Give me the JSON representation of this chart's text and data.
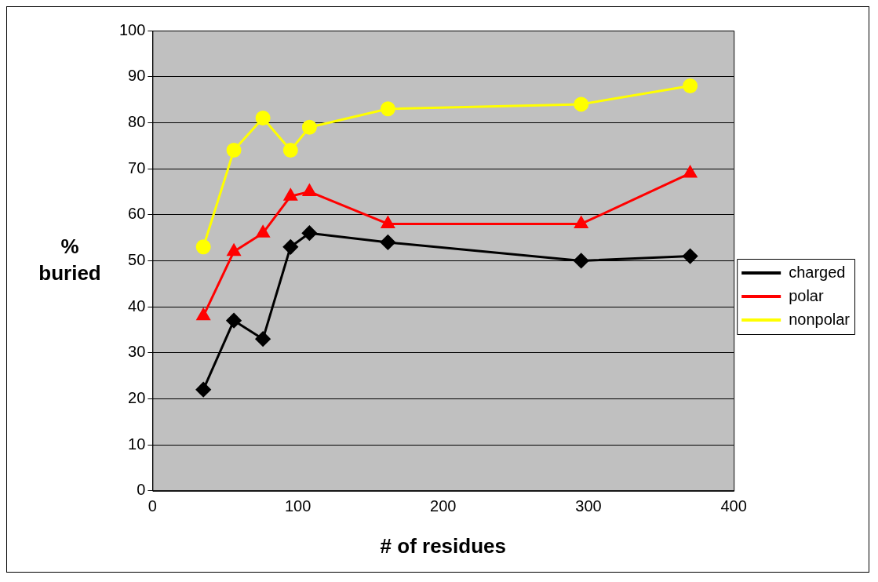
{
  "chart_data": {
    "type": "line",
    "xlabel": "# of residues",
    "ylabel": "% buried",
    "x": [
      35,
      56,
      76,
      95,
      108,
      162,
      295,
      370
    ],
    "series": [
      {
        "name": "charged",
        "color": "#000000",
        "marker": "diamond",
        "values": [
          22,
          37,
          33,
          53,
          56,
          54,
          50,
          51
        ]
      },
      {
        "name": "polar",
        "color": "#ff0000",
        "marker": "triangle",
        "values": [
          38,
          52,
          56,
          64,
          65,
          58,
          58,
          69
        ]
      },
      {
        "name": "nonpolar",
        "color": "#ffff00",
        "marker": "circle",
        "values": [
          53,
          74,
          81,
          74,
          79,
          83,
          84,
          88
        ]
      }
    ],
    "xlim": [
      0,
      400
    ],
    "xticks": [
      0,
      100,
      200,
      300,
      400
    ],
    "ylim": [
      0,
      100
    ],
    "yticks": [
      0,
      10,
      20,
      30,
      40,
      50,
      60,
      70,
      80,
      90,
      100
    ],
    "grid": "y",
    "legend": "right"
  }
}
